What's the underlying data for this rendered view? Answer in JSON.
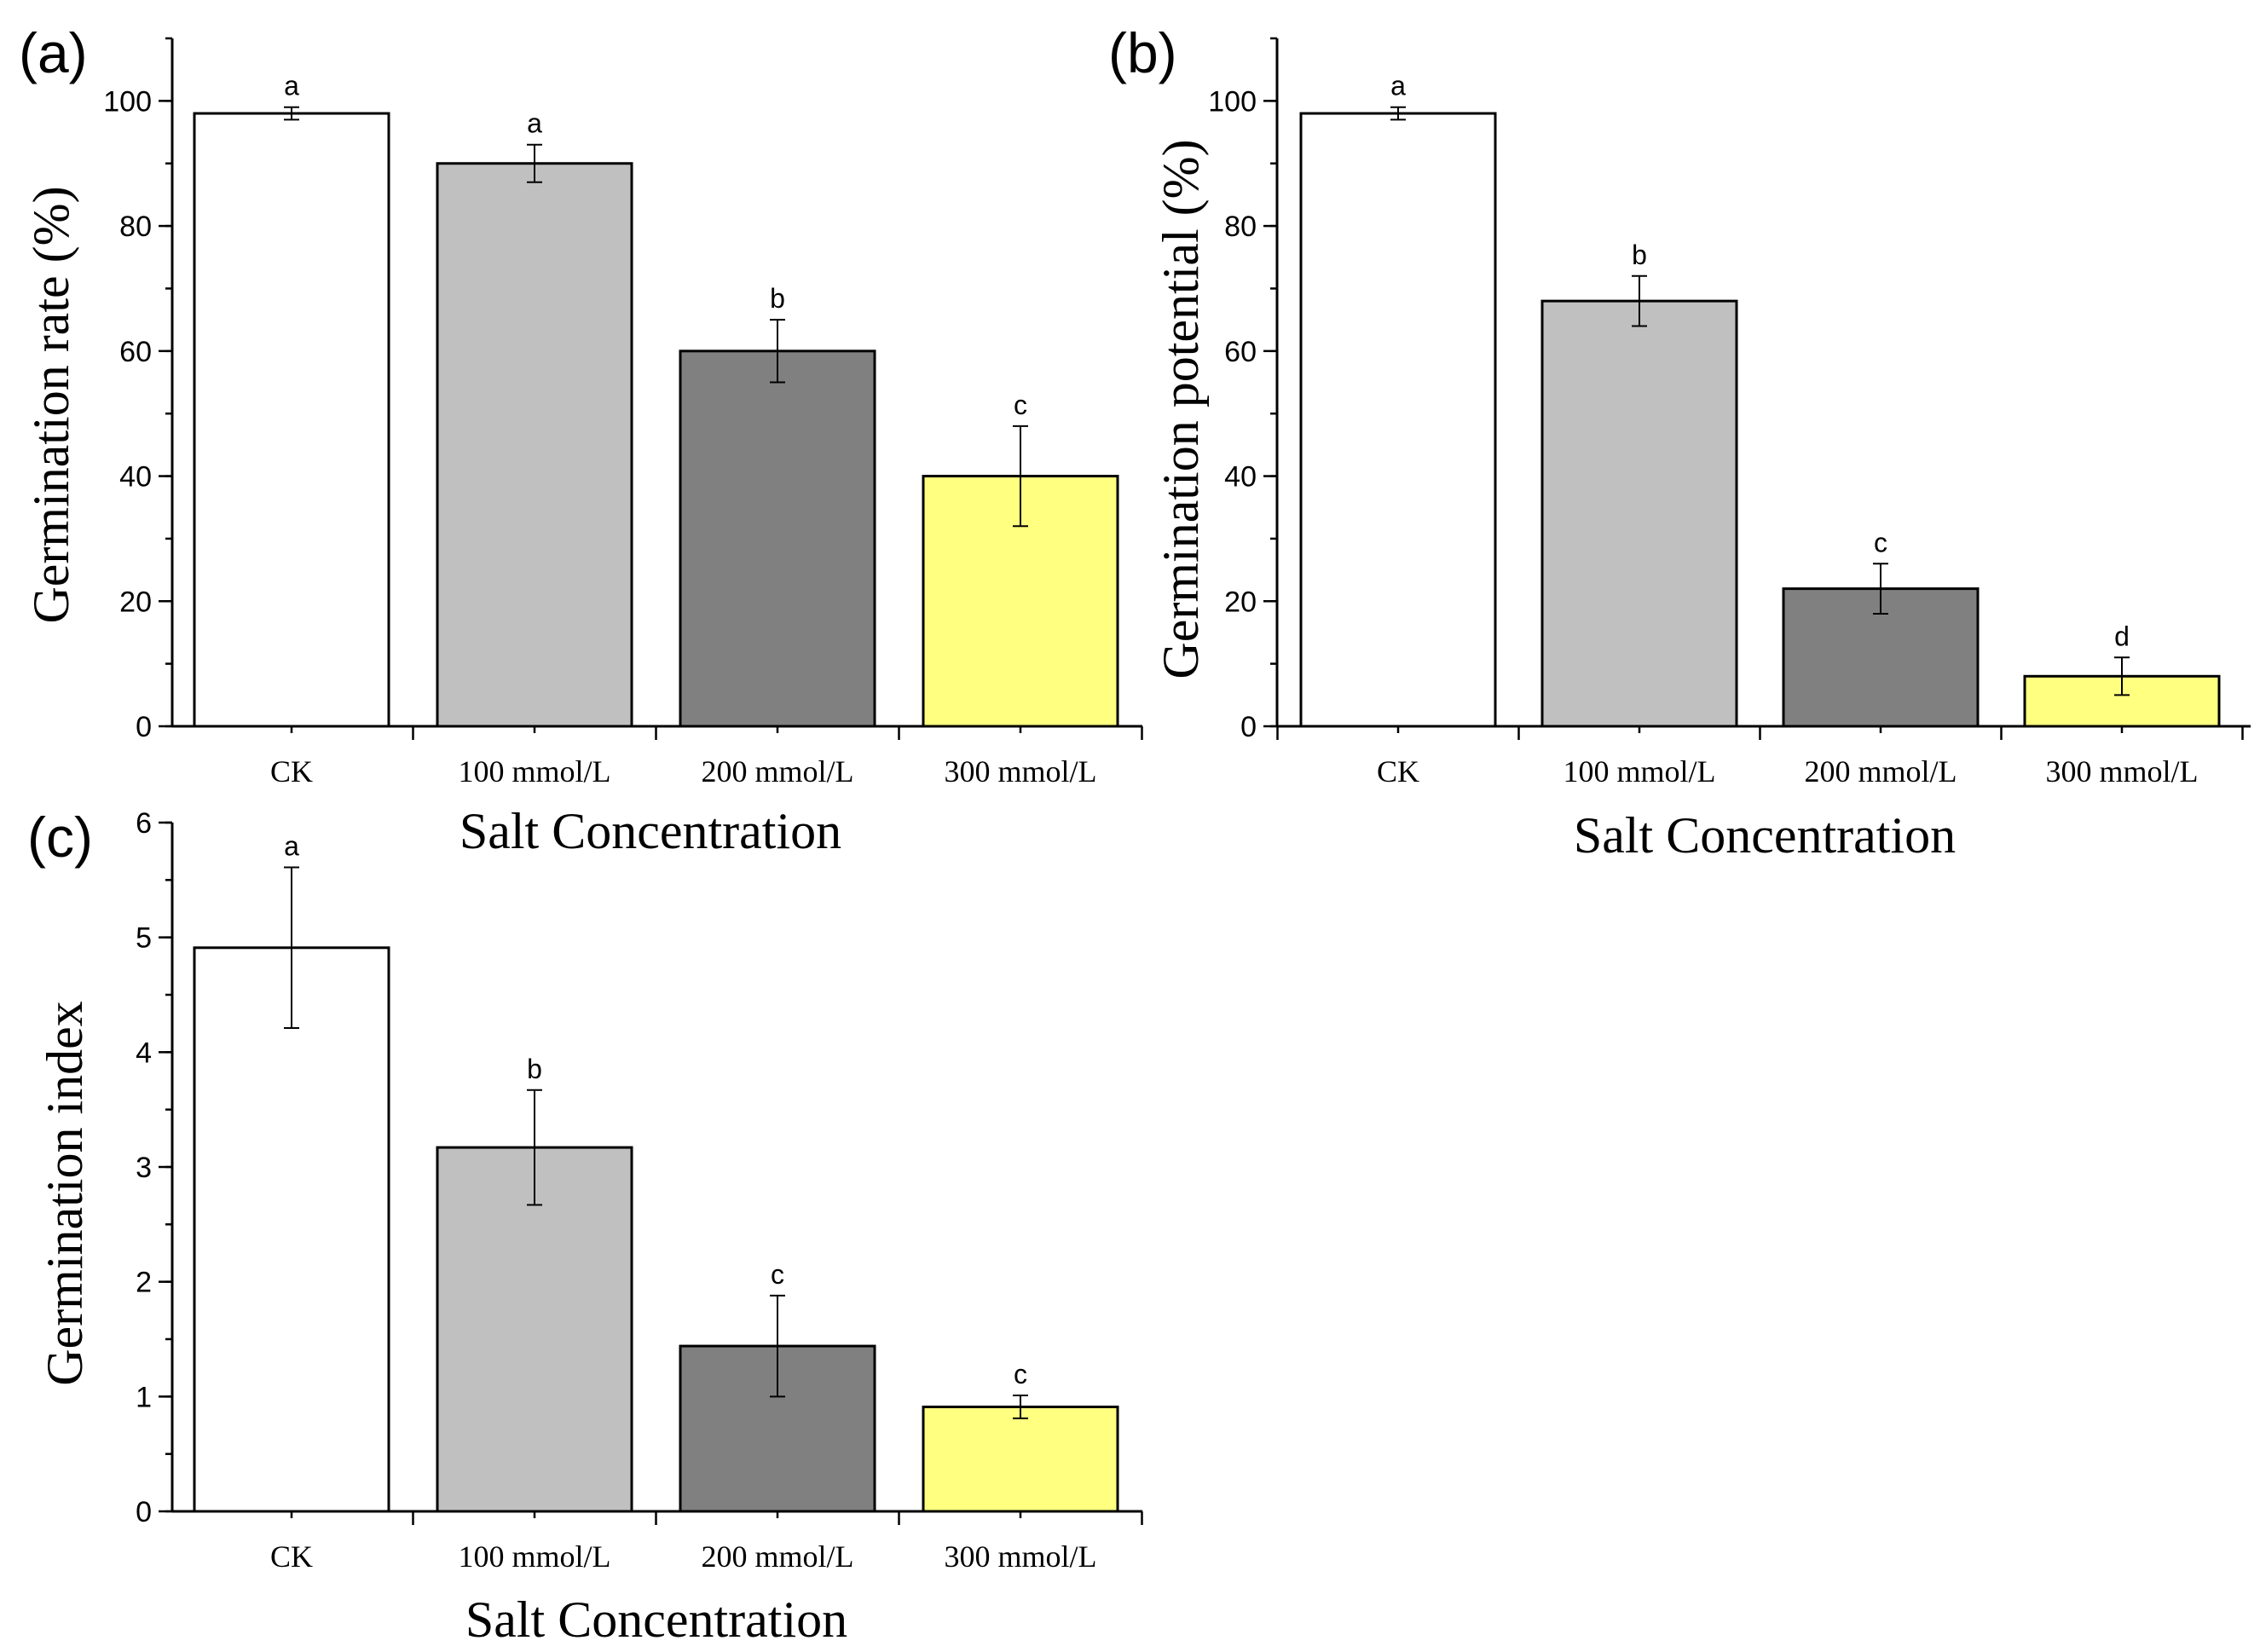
{
  "chart_data": [
    {
      "id": "a",
      "type": "bar",
      "panel_label": "(a)",
      "categories": [
        "CK",
        "100 mmol/L",
        "200 mmol/L",
        "300 mmol/L"
      ],
      "values": [
        98,
        90,
        60,
        40
      ],
      "errors": [
        1,
        3,
        5,
        8
      ],
      "significance": [
        "a",
        "a",
        "b",
        "c"
      ],
      "colors": [
        "#ffffff",
        "#c0c0c0",
        "#808080",
        "#ffff80"
      ],
      "xlabel": "Salt Concentration",
      "ylabel": "Germination rate (%)",
      "ylim": [
        0,
        110
      ],
      "yticks": [
        0,
        20,
        40,
        60,
        80,
        100
      ],
      "ytick_labels": [
        "0",
        "20",
        "40",
        "60",
        "80",
        "100"
      ],
      "ytick_minor_step": 10
    },
    {
      "id": "b",
      "type": "bar",
      "panel_label": "(b)",
      "categories": [
        "CK",
        "100 mmol/L",
        "200 mmol/L",
        "300 mmol/L"
      ],
      "values": [
        98,
        68,
        22,
        8
      ],
      "errors": [
        1,
        4,
        4,
        3
      ],
      "significance": [
        "a",
        "b",
        "c",
        "d"
      ],
      "colors": [
        "#ffffff",
        "#c0c0c0",
        "#808080",
        "#ffff80"
      ],
      "xlabel": "Salt Concentration",
      "ylabel": "Germination potential (%)",
      "ylim": [
        0,
        110
      ],
      "yticks": [
        0,
        20,
        40,
        60,
        80,
        100
      ],
      "ytick_labels": [
        "0",
        "20",
        "40",
        "60",
        "80",
        "100"
      ],
      "ytick_minor_step": 10
    },
    {
      "id": "c",
      "type": "bar",
      "panel_label": "(c)",
      "categories": [
        "CK",
        "100 mmol/L",
        "200 mmol/L",
        "300 mmol/L"
      ],
      "values": [
        4.91,
        3.17,
        1.44,
        0.91
      ],
      "errors": [
        0.7,
        0.5,
        0.44,
        0.1
      ],
      "significance": [
        "a",
        "b",
        "c",
        "c"
      ],
      "colors": [
        "#ffffff",
        "#c0c0c0",
        "#808080",
        "#ffff80"
      ],
      "xlabel": "Salt Concentration",
      "ylabel": "Germination index",
      "ylim": [
        0,
        6
      ],
      "yticks": [
        0,
        1,
        2,
        3,
        4,
        5,
        6
      ],
      "ytick_labels": [
        "0",
        "1",
        "2",
        "3",
        "4",
        "5",
        "6"
      ],
      "ytick_minor_step": 0.5
    }
  ]
}
